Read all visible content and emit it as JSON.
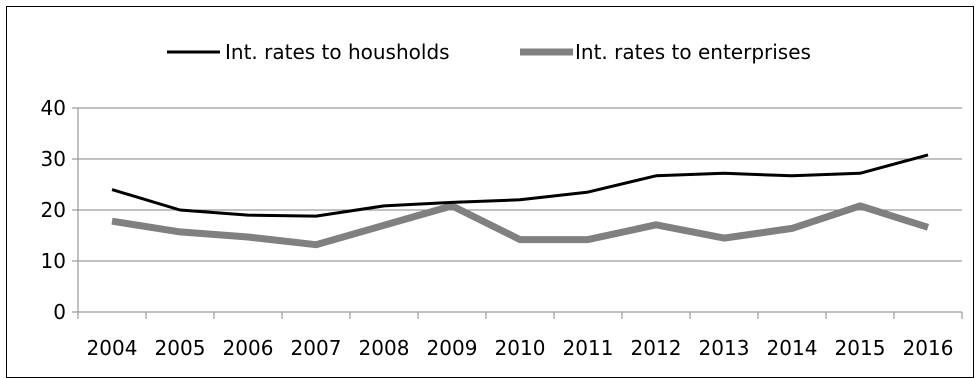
{
  "chart_data": {
    "type": "line",
    "title": "",
    "xlabel": "",
    "ylabel": "",
    "categories": [
      "2004",
      "2005",
      "2006",
      "2007",
      "2008",
      "2009",
      "2010",
      "2011",
      "2012",
      "2013",
      "2014",
      "2015",
      "2016"
    ],
    "ylim": [
      0,
      40
    ],
    "yticks": [
      0,
      10,
      20,
      30,
      40
    ],
    "grid": true,
    "legend_position": "top",
    "series": [
      {
        "name": "Int. rates to housholds",
        "color": "#000000",
        "values": [
          24,
          20,
          19,
          18.8,
          20.8,
          21.5,
          22,
          23.5,
          26.7,
          27.2,
          26.7,
          27.2,
          30.8
        ]
      },
      {
        "name": "Int. rates to enterprises",
        "color": "#808080",
        "values": [
          17.8,
          15.7,
          14.7,
          13.2,
          17,
          20.8,
          14.2,
          14.2,
          17.1,
          14.5,
          16.4,
          20.8,
          16.6
        ]
      }
    ]
  }
}
